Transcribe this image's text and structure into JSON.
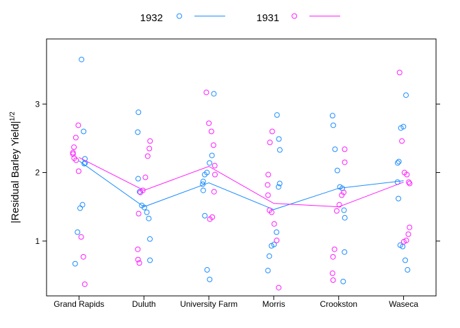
{
  "chart_data": {
    "type": "scatter",
    "categories": [
      "Grand Rapids",
      "Duluth",
      "University Farm",
      "Morris",
      "Crookston",
      "Waseca"
    ],
    "ylabel_main": "|Residual Barley Yield|",
    "ylabel_sup": "1/2",
    "y_ticks": [
      "1",
      "2",
      "3"
    ],
    "ylim": [
      0.2,
      3.95
    ],
    "grid": false,
    "legend_position": "top",
    "series": [
      {
        "name": "1932",
        "color": "#1a8cff",
        "points": [
          [
            0,
            3.65
          ],
          [
            0,
            2.6
          ],
          [
            0,
            2.2
          ],
          [
            0,
            2.14
          ],
          [
            0,
            2.13
          ],
          [
            0,
            1.53
          ],
          [
            0,
            1.48
          ],
          [
            0,
            1.13
          ],
          [
            0,
            0.67
          ],
          [
            1,
            2.88
          ],
          [
            1,
            2.59
          ],
          [
            1,
            1.91
          ],
          [
            1,
            1.72
          ],
          [
            1,
            1.52
          ],
          [
            1,
            1.49
          ],
          [
            1,
            1.42
          ],
          [
            1,
            1.33
          ],
          [
            1,
            1.03
          ],
          [
            1,
            0.72
          ],
          [
            2,
            3.15
          ],
          [
            2,
            2.25
          ],
          [
            2,
            2.14
          ],
          [
            2,
            2.0
          ],
          [
            2,
            1.97
          ],
          [
            2,
            1.87
          ],
          [
            2,
            1.83
          ],
          [
            2,
            1.74
          ],
          [
            2,
            1.37
          ],
          [
            2,
            0.58
          ],
          [
            2,
            0.44
          ],
          [
            3,
            2.84
          ],
          [
            3,
            2.49
          ],
          [
            3,
            2.33
          ],
          [
            3,
            1.84
          ],
          [
            3,
            1.79
          ],
          [
            3,
            1.13
          ],
          [
            3,
            0.95
          ],
          [
            3,
            0.93
          ],
          [
            3,
            0.78
          ],
          [
            3,
            0.57
          ],
          [
            4,
            2.83
          ],
          [
            4,
            2.69
          ],
          [
            4,
            2.34
          ],
          [
            4,
            2.03
          ],
          [
            4,
            1.79
          ],
          [
            4,
            1.77
          ],
          [
            4,
            1.45
          ],
          [
            4,
            1.34
          ],
          [
            4,
            0.84
          ],
          [
            4,
            0.41
          ],
          [
            5,
            3.13
          ],
          [
            5,
            2.67
          ],
          [
            5,
            2.65
          ],
          [
            5,
            2.16
          ],
          [
            5,
            2.14
          ],
          [
            5,
            1.86
          ],
          [
            5,
            1.62
          ],
          [
            5,
            0.94
          ],
          [
            5,
            0.92
          ],
          [
            5,
            0.72
          ],
          [
            5,
            0.58
          ]
        ],
        "means": [
          2.17,
          1.5,
          1.85,
          1.46,
          1.77,
          1.88
        ]
      },
      {
        "name": "1931",
        "color": "#ff1aff",
        "points": [
          [
            0,
            2.69
          ],
          [
            0,
            2.51
          ],
          [
            0,
            2.37
          ],
          [
            0,
            2.29
          ],
          [
            0,
            2.27
          ],
          [
            0,
            2.21
          ],
          [
            0,
            2.18
          ],
          [
            0,
            2.02
          ],
          [
            0,
            1.06
          ],
          [
            0,
            0.77
          ],
          [
            0,
            0.37
          ],
          [
            1,
            2.46
          ],
          [
            1,
            2.35
          ],
          [
            1,
            2.24
          ],
          [
            1,
            1.93
          ],
          [
            1,
            1.74
          ],
          [
            1,
            1.71
          ],
          [
            1,
            1.4
          ],
          [
            1,
            0.88
          ],
          [
            1,
            0.73
          ],
          [
            1,
            0.68
          ],
          [
            2,
            3.17
          ],
          [
            2,
            2.72
          ],
          [
            2,
            2.6
          ],
          [
            2,
            2.4
          ],
          [
            2,
            2.1
          ],
          [
            2,
            1.97
          ],
          [
            2,
            1.72
          ],
          [
            2,
            1.35
          ],
          [
            2,
            1.32
          ],
          [
            3,
            2.6
          ],
          [
            3,
            2.44
          ],
          [
            3,
            1.97
          ],
          [
            3,
            1.82
          ],
          [
            3,
            1.67
          ],
          [
            3,
            1.45
          ],
          [
            3,
            1.42
          ],
          [
            3,
            1.25
          ],
          [
            3,
            1.01
          ],
          [
            3,
            0.32
          ],
          [
            4,
            2.34
          ],
          [
            4,
            2.15
          ],
          [
            4,
            1.71
          ],
          [
            4,
            1.67
          ],
          [
            4,
            1.53
          ],
          [
            4,
            1.44
          ],
          [
            4,
            0.88
          ],
          [
            4,
            0.77
          ],
          [
            4,
            0.53
          ],
          [
            4,
            0.43
          ],
          [
            5,
            3.46
          ],
          [
            5,
            2.46
          ],
          [
            5,
            2.0
          ],
          [
            5,
            1.97
          ],
          [
            5,
            1.86
          ],
          [
            5,
            1.84
          ],
          [
            5,
            1.2
          ],
          [
            5,
            1.1
          ],
          [
            5,
            1.01
          ],
          [
            5,
            0.99
          ]
        ],
        "means": [
          2.22,
          1.74,
          2.09,
          1.55,
          1.5,
          1.86
        ]
      }
    ]
  }
}
